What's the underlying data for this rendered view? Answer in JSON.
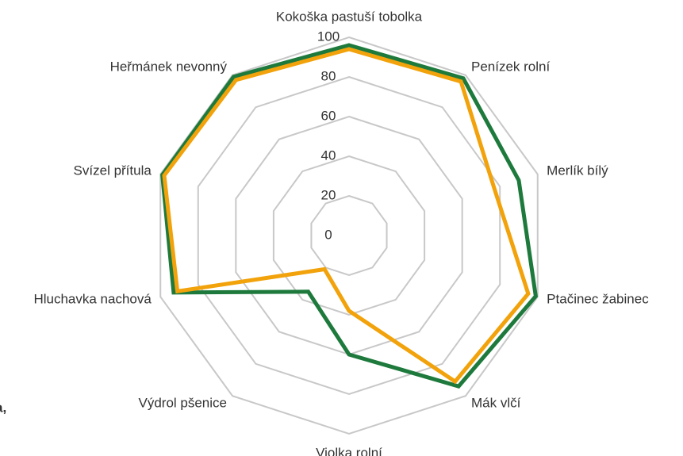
{
  "chart_data": {
    "type": "radar",
    "categories": [
      "Kokoška pastuší tobolka",
      "Penízek rolní",
      "Merlík bílý",
      "Ptačinec žabinec",
      "Mák vlčí",
      "Violka rolní",
      "Výdrol pšenice",
      "Hluchavka nachová",
      "Svízel přítula",
      "Heřmánek nevonný"
    ],
    "series": [
      {
        "color": "#1e7a3c",
        "values": [
          96,
          98,
          90,
          99,
          94,
          60,
          35,
          93,
          99,
          99
        ]
      },
      {
        "color": "#f2a20a",
        "values": [
          94,
          96,
          77,
          95,
          91,
          38,
          21,
          91,
          98,
          97
        ]
      }
    ],
    "ylim": [
      0,
      100
    ],
    "yticks": [
      0,
      20,
      40,
      60,
      80,
      100
    ],
    "grid": true,
    "annotation": "a,"
  }
}
